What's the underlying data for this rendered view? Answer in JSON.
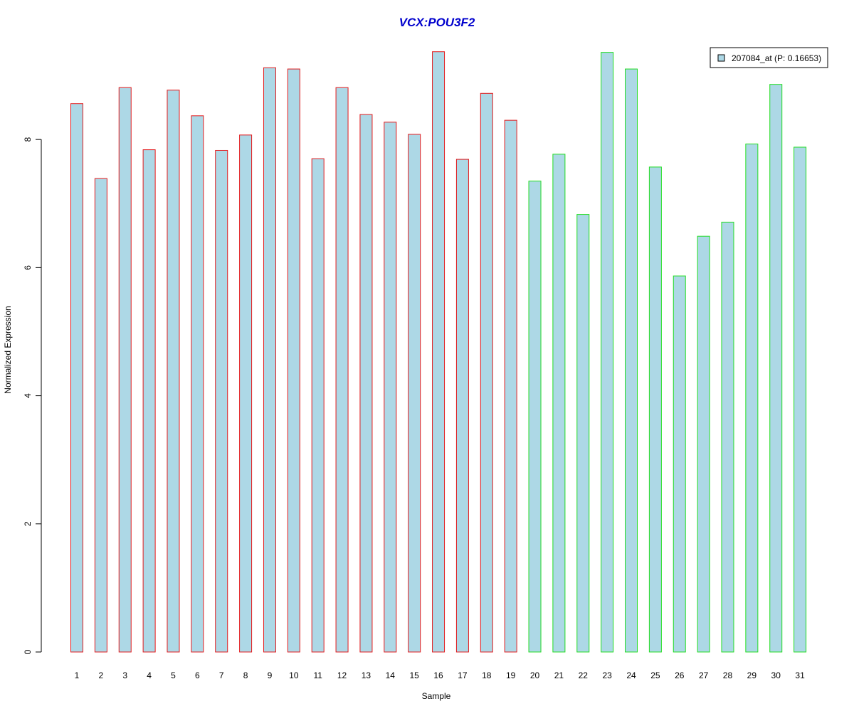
{
  "chart_data": {
    "type": "bar",
    "title": "VCX:POU3F2",
    "xlabel": "Sample",
    "ylabel": "Normalized Expression",
    "categories": [
      "1",
      "2",
      "3",
      "4",
      "5",
      "6",
      "7",
      "8",
      "9",
      "10",
      "11",
      "12",
      "13",
      "14",
      "15",
      "16",
      "17",
      "18",
      "19",
      "20",
      "21",
      "22",
      "23",
      "24",
      "25",
      "26",
      "27",
      "28",
      "29",
      "30",
      "31"
    ],
    "series": [
      {
        "name": "207084_at (P: 0.16653)",
        "values": [
          8.56,
          7.39,
          8.81,
          7.84,
          8.77,
          8.37,
          7.83,
          8.07,
          9.12,
          9.1,
          7.7,
          8.81,
          8.39,
          8.27,
          8.08,
          9.37,
          7.69,
          8.72,
          8.3,
          7.35,
          7.77,
          6.83,
          9.36,
          9.1,
          7.57,
          5.87,
          6.49,
          6.71,
          7.93,
          8.86,
          7.88
        ]
      }
    ],
    "group_border_colors": [
      "#e31a1c",
      "#e31a1c",
      "#e31a1c",
      "#e31a1c",
      "#e31a1c",
      "#e31a1c",
      "#e31a1c",
      "#e31a1c",
      "#e31a1c",
      "#e31a1c",
      "#e31a1c",
      "#e31a1c",
      "#e31a1c",
      "#e31a1c",
      "#e31a1c",
      "#e31a1c",
      "#e31a1c",
      "#e31a1c",
      "#e31a1c",
      "#22dd22",
      "#22dd22",
      "#22dd22",
      "#22dd22",
      "#22dd22",
      "#22dd22",
      "#22dd22",
      "#22dd22",
      "#22dd22",
      "#22dd22",
      "#22dd22",
      "#22dd22"
    ],
    "yticks": [
      0,
      2,
      4,
      6,
      8
    ],
    "ylim": [
      0,
      9.6
    ],
    "legend_position": "top-right",
    "colors": {
      "bar_fill": "#add8e6",
      "title": "#0000cd",
      "axis": "#000000"
    }
  }
}
